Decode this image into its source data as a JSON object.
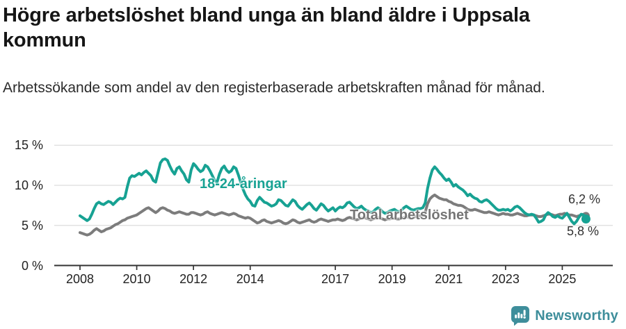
{
  "header": {
    "title": "Högre arbetslöshet bland unga än bland äldre i Uppsala kommun",
    "subtitle": "Arbetssökande som andel av den registerbaserade arbetskraften månad för månad."
  },
  "chart_data": {
    "type": "line",
    "title": "Högre arbetslöshet bland unga än bland äldre i Uppsala kommun",
    "subtitle": "Arbetssökande som andel av den registerbaserade arbetskraften månad för månad.",
    "unit": "%",
    "frequency": "monthly",
    "x_range": [
      "2008-01",
      "2025-11"
    ],
    "ylim": [
      0,
      15
    ],
    "grid": true,
    "grid_color": "#dcdcdc",
    "axis_color": "#333333",
    "x_ticks": [
      2008,
      2010,
      2012,
      2014,
      2017,
      2019,
      2021,
      2023,
      2025
    ],
    "y_ticks": [
      {
        "value": 0,
        "label": "0 %"
      },
      {
        "value": 5,
        "label": "5 %"
      },
      {
        "value": 10,
        "label": "10 %"
      },
      {
        "value": 15,
        "label": "15 %"
      }
    ],
    "series": [
      {
        "name": "18-24-åringar",
        "color": "#17a293",
        "last_value": 5.8,
        "values": [
          6.2,
          6.0,
          5.8,
          5.6,
          5.8,
          6.4,
          7.1,
          7.7,
          7.9,
          7.7,
          7.6,
          7.8,
          8.0,
          7.9,
          7.6,
          7.9,
          8.2,
          8.4,
          8.3,
          8.5,
          9.8,
          10.9,
          11.2,
          11.1,
          11.3,
          11.5,
          11.3,
          11.6,
          11.8,
          11.5,
          11.2,
          10.6,
          10.4,
          11.6,
          12.8,
          13.2,
          13.3,
          13.1,
          12.4,
          11.8,
          11.4,
          12.1,
          12.3,
          11.8,
          11.4,
          10.7,
          10.4,
          11.9,
          12.7,
          12.4,
          12.0,
          11.7,
          11.9,
          12.5,
          12.3,
          11.8,
          11.2,
          10.6,
          10.4,
          11.4,
          12.1,
          12.4,
          11.9,
          11.6,
          11.8,
          12.3,
          12.1,
          11.3,
          10.4,
          9.5,
          8.8,
          8.3,
          8.0,
          7.5,
          7.4,
          8.1,
          8.5,
          8.2,
          7.9,
          7.8,
          7.6,
          7.4,
          7.5,
          7.7,
          8.2,
          8.1,
          7.8,
          7.5,
          7.4,
          7.8,
          8.2,
          8.0,
          7.5,
          7.2,
          7.0,
          7.3,
          7.6,
          7.8,
          7.5,
          7.1,
          6.9,
          7.3,
          7.7,
          7.5,
          7.1,
          6.8,
          7.0,
          7.2,
          6.8,
          7.1,
          7.3,
          7.2,
          7.4,
          7.8,
          7.9,
          7.6,
          7.3,
          7.1,
          7.2,
          7.4,
          7.1,
          6.9,
          6.8,
          6.6,
          6.7,
          7.0,
          7.2,
          7.0,
          6.7,
          6.5,
          6.6,
          6.8,
          6.9,
          7.0,
          6.8,
          6.7,
          6.9,
          7.2,
          7.4,
          7.2,
          7.0,
          6.9,
          7.0,
          7.1,
          7.1,
          7.2,
          7.8,
          9.6,
          10.9,
          11.9,
          12.3,
          12.0,
          11.6,
          11.3,
          10.9,
          10.6,
          10.8,
          10.4,
          9.9,
          10.1,
          9.8,
          9.6,
          9.4,
          9.1,
          8.7,
          8.9,
          8.6,
          8.4,
          8.3,
          8.0,
          7.9,
          8.1,
          8.2,
          8.0,
          7.7,
          7.4,
          7.1,
          6.9,
          6.9,
          7.0,
          6.9,
          7.0,
          6.8,
          7.0,
          7.3,
          7.4,
          7.2,
          6.9,
          6.6,
          6.4,
          6.3,
          6.4,
          6.3,
          5.9,
          5.4,
          5.5,
          5.7,
          6.3,
          6.6,
          6.4,
          6.1,
          6.0,
          6.2,
          6.0,
          5.9,
          6.2,
          6.5,
          6.0,
          5.5,
          5.2,
          5.5,
          6.0,
          6.4,
          6.3,
          5.8
        ]
      },
      {
        "name": "Total arbetslöshet",
        "color": "#7c7c7c",
        "last_value": 6.2,
        "values": [
          4.1,
          4.0,
          3.9,
          3.8,
          3.9,
          4.1,
          4.4,
          4.6,
          4.4,
          4.2,
          4.3,
          4.5,
          4.6,
          4.7,
          4.9,
          5.1,
          5.2,
          5.4,
          5.6,
          5.7,
          5.9,
          6.0,
          6.1,
          6.2,
          6.3,
          6.5,
          6.7,
          6.9,
          7.1,
          7.2,
          7.0,
          6.8,
          6.6,
          6.8,
          7.1,
          7.2,
          7.1,
          6.9,
          6.8,
          6.6,
          6.5,
          6.6,
          6.7,
          6.6,
          6.5,
          6.4,
          6.4,
          6.6,
          6.6,
          6.5,
          6.4,
          6.3,
          6.4,
          6.6,
          6.7,
          6.5,
          6.4,
          6.3,
          6.4,
          6.5,
          6.6,
          6.5,
          6.4,
          6.3,
          6.4,
          6.5,
          6.4,
          6.2,
          6.1,
          6.0,
          5.9,
          6.0,
          5.9,
          5.7,
          5.5,
          5.3,
          5.4,
          5.6,
          5.7,
          5.5,
          5.4,
          5.3,
          5.4,
          5.5,
          5.6,
          5.5,
          5.3,
          5.2,
          5.3,
          5.5,
          5.7,
          5.6,
          5.4,
          5.3,
          5.4,
          5.5,
          5.6,
          5.7,
          5.5,
          5.4,
          5.5,
          5.7,
          5.8,
          5.7,
          5.6,
          5.5,
          5.6,
          5.7,
          5.7,
          5.8,
          5.7,
          5.6,
          5.7,
          5.9,
          6.0,
          5.9,
          5.8,
          5.7,
          5.8,
          5.9,
          6.0,
          5.9,
          5.8,
          5.7,
          5.8,
          5.9,
          6.0,
          5.9,
          5.8,
          5.7,
          5.8,
          5.8,
          5.9,
          5.9,
          5.8,
          5.8,
          5.9,
          6.0,
          6.1,
          6.0,
          5.9,
          6.0,
          6.1,
          6.2,
          6.2,
          6.2,
          6.6,
          7.7,
          8.3,
          8.6,
          8.8,
          8.6,
          8.4,
          8.3,
          8.2,
          8.2,
          8.0,
          7.9,
          7.7,
          7.6,
          7.5,
          7.5,
          7.4,
          7.2,
          7.0,
          6.9,
          6.9,
          7.0,
          6.9,
          6.8,
          6.7,
          6.6,
          6.6,
          6.7,
          6.6,
          6.5,
          6.4,
          6.3,
          6.4,
          6.5,
          6.4,
          6.4,
          6.3,
          6.3,
          6.4,
          6.5,
          6.4,
          6.3,
          6.2,
          6.2,
          6.3,
          6.3,
          6.3,
          6.2,
          6.1,
          6.1,
          6.2,
          6.3,
          6.4,
          6.4,
          6.3,
          6.2,
          6.3,
          6.4,
          6.4,
          6.5,
          6.4,
          6.3,
          6.3,
          6.2,
          6.1,
          6.2,
          6.3,
          6.4,
          6.2
        ]
      }
    ],
    "end_labels": [
      {
        "series": "Total arbetslöshet",
        "text": "6,2 %"
      },
      {
        "series": "18-24-åringar",
        "text": "5,8 %"
      }
    ],
    "legend_position": "inline-on-lines"
  },
  "footer": {
    "brand": "Newsworthy",
    "brand_color": "#3e8e9b"
  }
}
